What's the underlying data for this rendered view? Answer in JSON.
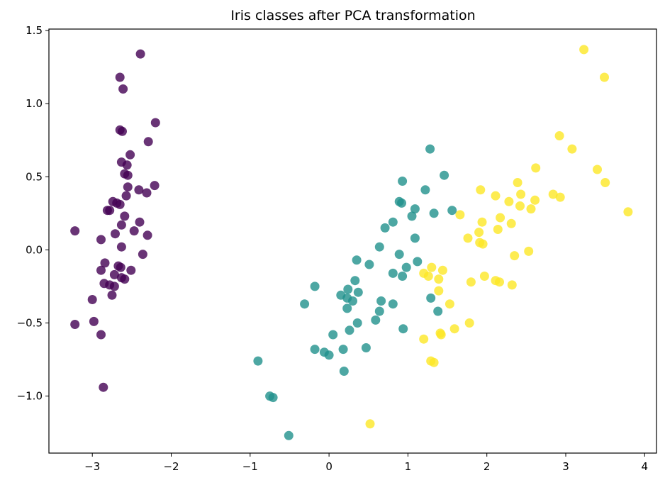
{
  "chart_data": {
    "type": "scatter",
    "title": "Iris classes after PCA transformation",
    "xlabel": "",
    "ylabel": "",
    "xlim": [
      -3.55,
      4.15
    ],
    "ylim": [
      -1.39,
      1.51
    ],
    "xticks": [
      -3,
      -2,
      -1,
      0,
      1,
      2,
      3,
      4
    ],
    "yticks": [
      -1.0,
      -0.5,
      0.0,
      0.5,
      1.0,
      1.5
    ],
    "xtick_labels": [
      "−3",
      "−2",
      "−1",
      "0",
      "1",
      "2",
      "3",
      "4"
    ],
    "ytick_labels": [
      "−1.0",
      "−0.5",
      "0.0",
      "0.5",
      "1.0",
      "1.5"
    ],
    "grid": false,
    "legend": "none",
    "series": [
      {
        "color": "#440154",
        "points": [
          [
            -2.39,
            1.34
          ],
          [
            -2.65,
            1.18
          ],
          [
            -2.61,
            1.1
          ],
          [
            -2.2,
            0.87
          ],
          [
            -2.65,
            0.82
          ],
          [
            -2.62,
            0.81
          ],
          [
            -2.29,
            0.74
          ],
          [
            -2.52,
            0.65
          ],
          [
            -2.63,
            0.6
          ],
          [
            -2.56,
            0.58
          ],
          [
            -2.59,
            0.52
          ],
          [
            -2.55,
            0.51
          ],
          [
            -2.21,
            0.44
          ],
          [
            -2.55,
            0.43
          ],
          [
            -2.41,
            0.41
          ],
          [
            -2.31,
            0.39
          ],
          [
            -2.57,
            0.37
          ],
          [
            -2.74,
            0.33
          ],
          [
            -2.69,
            0.32
          ],
          [
            -2.65,
            0.31
          ],
          [
            -2.78,
            0.27
          ],
          [
            -2.81,
            0.27
          ],
          [
            -2.59,
            0.23
          ],
          [
            -2.4,
            0.19
          ],
          [
            -2.63,
            0.17
          ],
          [
            -3.22,
            0.13
          ],
          [
            -2.47,
            0.13
          ],
          [
            -2.71,
            0.11
          ],
          [
            -2.3,
            0.1
          ],
          [
            -2.89,
            0.07
          ],
          [
            -2.63,
            0.02
          ],
          [
            -2.36,
            -0.03
          ],
          [
            -2.84,
            -0.09
          ],
          [
            -2.67,
            -0.11
          ],
          [
            -2.64,
            -0.12
          ],
          [
            -2.89,
            -0.14
          ],
          [
            -2.51,
            -0.14
          ],
          [
            -2.72,
            -0.17
          ],
          [
            -2.63,
            -0.19
          ],
          [
            -2.59,
            -0.2
          ],
          [
            -2.85,
            -0.23
          ],
          [
            -2.78,
            -0.24
          ],
          [
            -2.72,
            -0.25
          ],
          [
            -2.75,
            -0.31
          ],
          [
            -3.0,
            -0.34
          ],
          [
            -2.98,
            -0.49
          ],
          [
            -3.22,
            -0.51
          ],
          [
            -2.89,
            -0.58
          ],
          [
            -2.86,
            -0.94
          ]
        ]
      },
      {
        "color": "#21918c",
        "points": [
          [
            1.28,
            0.69
          ],
          [
            1.46,
            0.51
          ],
          [
            0.93,
            0.47
          ],
          [
            1.22,
            0.41
          ],
          [
            0.89,
            0.33
          ],
          [
            0.92,
            0.32
          ],
          [
            1.09,
            0.28
          ],
          [
            1.56,
            0.27
          ],
          [
            1.33,
            0.25
          ],
          [
            1.05,
            0.23
          ],
          [
            0.81,
            0.19
          ],
          [
            0.71,
            0.15
          ],
          [
            1.09,
            0.08
          ],
          [
            0.64,
            0.02
          ],
          [
            0.89,
            -0.03
          ],
          [
            0.35,
            -0.07
          ],
          [
            1.12,
            -0.08
          ],
          [
            0.51,
            -0.1
          ],
          [
            0.98,
            -0.12
          ],
          [
            0.81,
            -0.16
          ],
          [
            0.93,
            -0.18
          ],
          [
            0.33,
            -0.21
          ],
          [
            0.24,
            -0.27
          ],
          [
            0.37,
            -0.29
          ],
          [
            0.15,
            -0.31
          ],
          [
            -0.18,
            -0.25
          ],
          [
            1.29,
            -0.33
          ],
          [
            0.23,
            -0.33
          ],
          [
            0.3,
            -0.35
          ],
          [
            0.66,
            -0.35
          ],
          [
            -0.31,
            -0.37
          ],
          [
            0.81,
            -0.37
          ],
          [
            0.23,
            -0.4
          ],
          [
            0.64,
            -0.42
          ],
          [
            1.38,
            -0.42
          ],
          [
            0.59,
            -0.48
          ],
          [
            0.36,
            -0.5
          ],
          [
            0.94,
            -0.54
          ],
          [
            0.26,
            -0.55
          ],
          [
            0.05,
            -0.58
          ],
          [
            0.47,
            -0.67
          ],
          [
            -0.18,
            -0.68
          ],
          [
            0.18,
            -0.68
          ],
          [
            -0.06,
            -0.7
          ],
          [
            -0.0,
            -0.72
          ],
          [
            0.19,
            -0.83
          ],
          [
            -0.9,
            -0.76
          ],
          [
            -0.75,
            -1.0
          ],
          [
            -0.71,
            -1.01
          ],
          [
            -0.51,
            -1.27
          ]
        ]
      },
      {
        "color": "#fde725",
        "points": [
          [
            3.23,
            1.37
          ],
          [
            3.49,
            1.18
          ],
          [
            2.92,
            0.78
          ],
          [
            3.08,
            0.69
          ],
          [
            2.62,
            0.56
          ],
          [
            3.4,
            0.55
          ],
          [
            2.39,
            0.46
          ],
          [
            3.5,
            0.46
          ],
          [
            1.92,
            0.41
          ],
          [
            2.11,
            0.37
          ],
          [
            2.43,
            0.38
          ],
          [
            2.84,
            0.38
          ],
          [
            2.93,
            0.36
          ],
          [
            2.61,
            0.34
          ],
          [
            2.28,
            0.33
          ],
          [
            2.42,
            0.3
          ],
          [
            2.56,
            0.28
          ],
          [
            3.79,
            0.26
          ],
          [
            1.66,
            0.24
          ],
          [
            2.17,
            0.22
          ],
          [
            1.94,
            0.19
          ],
          [
            2.31,
            0.18
          ],
          [
            2.14,
            0.14
          ],
          [
            1.9,
            0.12
          ],
          [
            1.76,
            0.08
          ],
          [
            1.91,
            0.05
          ],
          [
            1.95,
            0.04
          ],
          [
            2.53,
            -0.01
          ],
          [
            2.35,
            -0.04
          ],
          [
            1.3,
            -0.12
          ],
          [
            1.44,
            -0.14
          ],
          [
            1.2,
            -0.16
          ],
          [
            1.97,
            -0.18
          ],
          [
            1.26,
            -0.18
          ],
          [
            1.39,
            -0.2
          ],
          [
            1.8,
            -0.22
          ],
          [
            2.11,
            -0.21
          ],
          [
            2.16,
            -0.22
          ],
          [
            2.32,
            -0.24
          ],
          [
            1.39,
            -0.28
          ],
          [
            1.53,
            -0.37
          ],
          [
            1.78,
            -0.5
          ],
          [
            1.59,
            -0.54
          ],
          [
            1.41,
            -0.57
          ],
          [
            1.42,
            -0.58
          ],
          [
            1.2,
            -0.61
          ],
          [
            1.29,
            -0.76
          ],
          [
            1.33,
            -0.77
          ],
          [
            0.52,
            -1.19
          ]
        ]
      }
    ]
  }
}
